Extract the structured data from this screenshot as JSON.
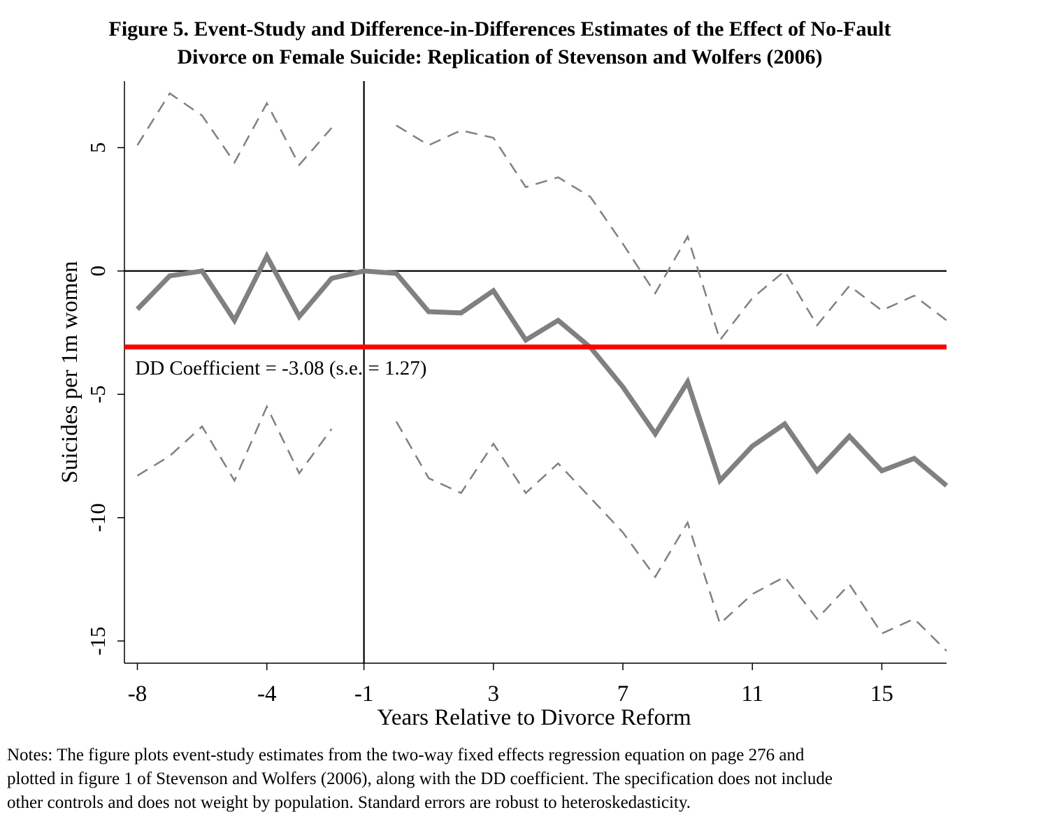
{
  "figure": {
    "title_line1": "Figure 5. Event-Study and Difference-in-Differences Estimates of the Effect of No-Fault",
    "title_line2": "Divorce on Female Suicide: Replication of Stevenson and Wolfers (2006)",
    "notes_line1": "Notes: The figure plots event-study estimates from the two-way fixed effects regression equation on page 276 and",
    "notes_line2": "plotted in figure 1 of Stevenson and Wolfers (2006), along with the DD coefficient. The specification does not include",
    "notes_line3": "other controls and does not weight by population. Standard errors are robust to heteroskedasticity."
  },
  "chart_data": {
    "type": "line",
    "title": "Figure 5. Event-Study and Difference-in-Differences Estimates of the Effect of No-Fault Divorce on Female Suicide: Replication of Stevenson and Wolfers (2006)",
    "xlabel": "Years Relative to Divorce Reform",
    "ylabel": "Suicides per 1m women",
    "xlim": [
      -8.4,
      17
    ],
    "ylim": [
      -15.9,
      7.7
    ],
    "xticks": [
      -8,
      -4,
      -1,
      3,
      7,
      11,
      15
    ],
    "yticks": [
      5,
      0,
      -5,
      -10,
      -15
    ],
    "grid": false,
    "x": [
      -8,
      -7,
      -6,
      -5,
      -4,
      -3,
      -2,
      -1,
      0,
      1,
      2,
      3,
      4,
      5,
      6,
      7,
      8,
      9,
      10,
      11,
      12,
      13,
      14,
      15,
      16,
      17
    ],
    "series": [
      {
        "role": "estimate",
        "values": [
          -1.55,
          -0.2,
          0,
          -2.0,
          0.6,
          -1.85,
          -0.3,
          0,
          -0.1,
          -1.65,
          -1.7,
          -0.8,
          -2.8,
          -2.0,
          -3.1,
          -4.7,
          -6.6,
          -4.5,
          -8.5,
          -7.1,
          -6.2,
          -8.1,
          -6.7,
          -8.1,
          -7.6,
          -8.7
        ],
        "color": "#808080"
      },
      {
        "role": "upper-95ci",
        "values": [
          5.1,
          7.2,
          6.3,
          4.4,
          6.8,
          4.3,
          5.8,
          null,
          5.9,
          5.1,
          5.7,
          5.4,
          3.4,
          3.8,
          3.0,
          1.1,
          -0.9,
          1.4,
          -2.8,
          -1.1,
          0,
          -2.2,
          -0.6,
          -1.6,
          -1.0,
          -2.0
        ],
        "color": "#808080",
        "dash": true
      },
      {
        "role": "lower-95ci",
        "values": [
          -8.3,
          -7.5,
          -6.3,
          -8.5,
          -5.5,
          -8.2,
          -6.4,
          null,
          -6.1,
          -8.4,
          -9.0,
          -7.0,
          -9.0,
          -7.8,
          -9.2,
          -10.6,
          -12.4,
          -10.2,
          -14.3,
          -13.1,
          -12.4,
          -14.1,
          -12.7,
          -14.7,
          -14.1,
          -15.4
        ],
        "color": "#808080",
        "dash": true
      }
    ],
    "dd_coefficient": {
      "value": -3.08,
      "se": 1.27,
      "color": "#ff0000",
      "label": "DD Coefficient = -3.08 (s.e. = 1.27)",
      "label_x": -8.2,
      "label_y": -4.2
    },
    "reference_lines": {
      "hline_y": 0,
      "vline_x": -1,
      "color": "#000000"
    }
  }
}
